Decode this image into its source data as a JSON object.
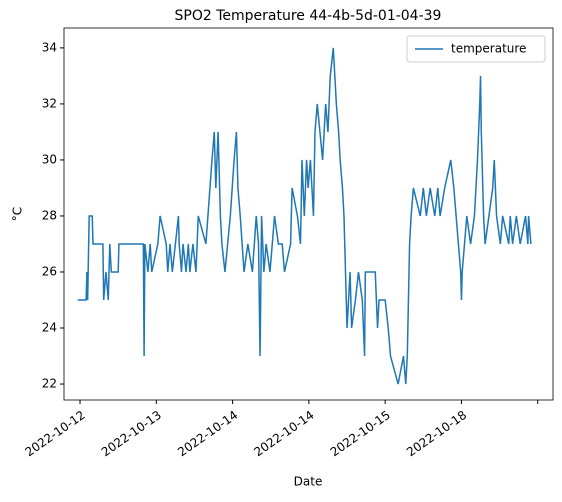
{
  "chart_data": {
    "type": "line",
    "title": "SPO2 Temperature 44-4b-5d-01-04-39",
    "x_label": "Date",
    "y_label": "°C",
    "x": [
      -0.03,
      0.08,
      0.09,
      0.1,
      0.12,
      0.16,
      0.17,
      0.3,
      0.31,
      0.34,
      0.37,
      0.38,
      0.39,
      0.41,
      0.5,
      0.51,
      0.83,
      0.84,
      0.85,
      0.89,
      0.92,
      0.94,
      1.02,
      1.05,
      1.13,
      1.15,
      1.18,
      1.21,
      1.25,
      1.29,
      1.3,
      1.33,
      1.35,
      1.39,
      1.42,
      1.44,
      1.48,
      1.52,
      1.55,
      1.65,
      1.73,
      1.76,
      1.78,
      1.81,
      1.84,
      1.86,
      1.9,
      1.97,
      2.02,
      2.05,
      2.07,
      2.1,
      2.15,
      2.2,
      2.26,
      2.31,
      2.34,
      2.36,
      2.38,
      2.41,
      2.44,
      2.49,
      2.55,
      2.6,
      2.65,
      2.68,
      2.76,
      2.78,
      2.85,
      2.89,
      2.91,
      2.94,
      2.97,
      2.99,
      3.02,
      3.06,
      3.08,
      3.11,
      3.18,
      3.22,
      3.25,
      3.28,
      3.32,
      3.36,
      3.39,
      3.41,
      3.44,
      3.46,
      3.48,
      3.49,
      3.5,
      3.52,
      3.54,
      3.56,
      3.61,
      3.65,
      3.7,
      3.73,
      3.74,
      3.87,
      3.9,
      3.92,
      4.0,
      4.04,
      4.07,
      4.17,
      4.24,
      4.27,
      4.29,
      4.32,
      4.34,
      4.37,
      4.46,
      4.5,
      4.54,
      4.59,
      4.65,
      4.69,
      4.72,
      4.78,
      4.86,
      4.9,
      4.93,
      4.96,
      4.99,
      5.0,
      5.01,
      5.04,
      5.07,
      5.12,
      5.17,
      5.21,
      5.24,
      5.25,
      5.26,
      5.29,
      5.31,
      5.41,
      5.43,
      5.46,
      5.51,
      5.54,
      5.62,
      5.64,
      5.67,
      5.72,
      5.77,
      5.84,
      5.87,
      5.88,
      5.91
    ],
    "series": [
      {
        "name": "temperature",
        "color": "#1f77b4",
        "values": [
          25,
          25,
          26,
          25,
          28,
          28,
          27,
          27,
          25,
          26,
          25,
          26,
          27,
          26,
          26,
          27,
          27,
          23,
          27,
          26,
          27,
          26,
          27,
          28,
          27,
          26,
          27,
          26,
          27,
          28,
          27,
          26,
          27,
          26,
          27,
          26,
          27,
          26,
          28,
          27,
          30,
          31,
          29,
          31,
          28,
          27,
          26,
          28,
          30,
          31,
          29,
          28,
          26,
          27,
          26,
          28,
          27,
          23,
          28,
          26,
          27,
          26,
          28,
          27,
          27,
          26,
          27,
          29,
          28,
          27,
          30,
          28,
          30,
          29,
          30,
          28,
          31,
          32,
          30,
          32,
          31,
          33,
          34,
          32,
          31,
          30,
          29,
          28,
          26,
          25,
          24,
          25,
          26,
          24,
          25,
          26,
          25,
          23,
          26,
          26,
          24,
          25,
          25,
          24,
          23,
          22,
          23,
          22,
          23,
          27,
          28,
          29,
          28,
          29,
          28,
          29,
          28,
          29,
          28,
          29,
          30,
          29,
          28,
          27,
          26,
          25,
          26,
          27,
          28,
          27,
          28,
          30,
          32,
          33,
          31,
          28,
          27,
          29,
          30,
          28,
          27,
          28,
          27,
          28,
          27,
          28,
          27,
          28,
          27,
          28,
          27
        ]
      }
    ],
    "xlim": [
      -0.21,
      6.2
    ],
    "xticks": [
      {
        "value": 0,
        "label": "2022-10-12"
      },
      {
        "value": 1,
        "label": "2022-10-13"
      },
      {
        "value": 2,
        "label": "2022-10-14"
      },
      {
        "value": 3,
        "label": "2022-10-14"
      },
      {
        "value": 4,
        "label": "2022-10-15"
      },
      {
        "value": 5,
        "label": "2022-10-18"
      },
      {
        "value": 6,
        "label": null
      }
    ],
    "ylim": [
      21.43,
      34.71
    ],
    "yticks": [
      22,
      24,
      26,
      28,
      30,
      32,
      34
    ],
    "legend": "upper right"
  }
}
